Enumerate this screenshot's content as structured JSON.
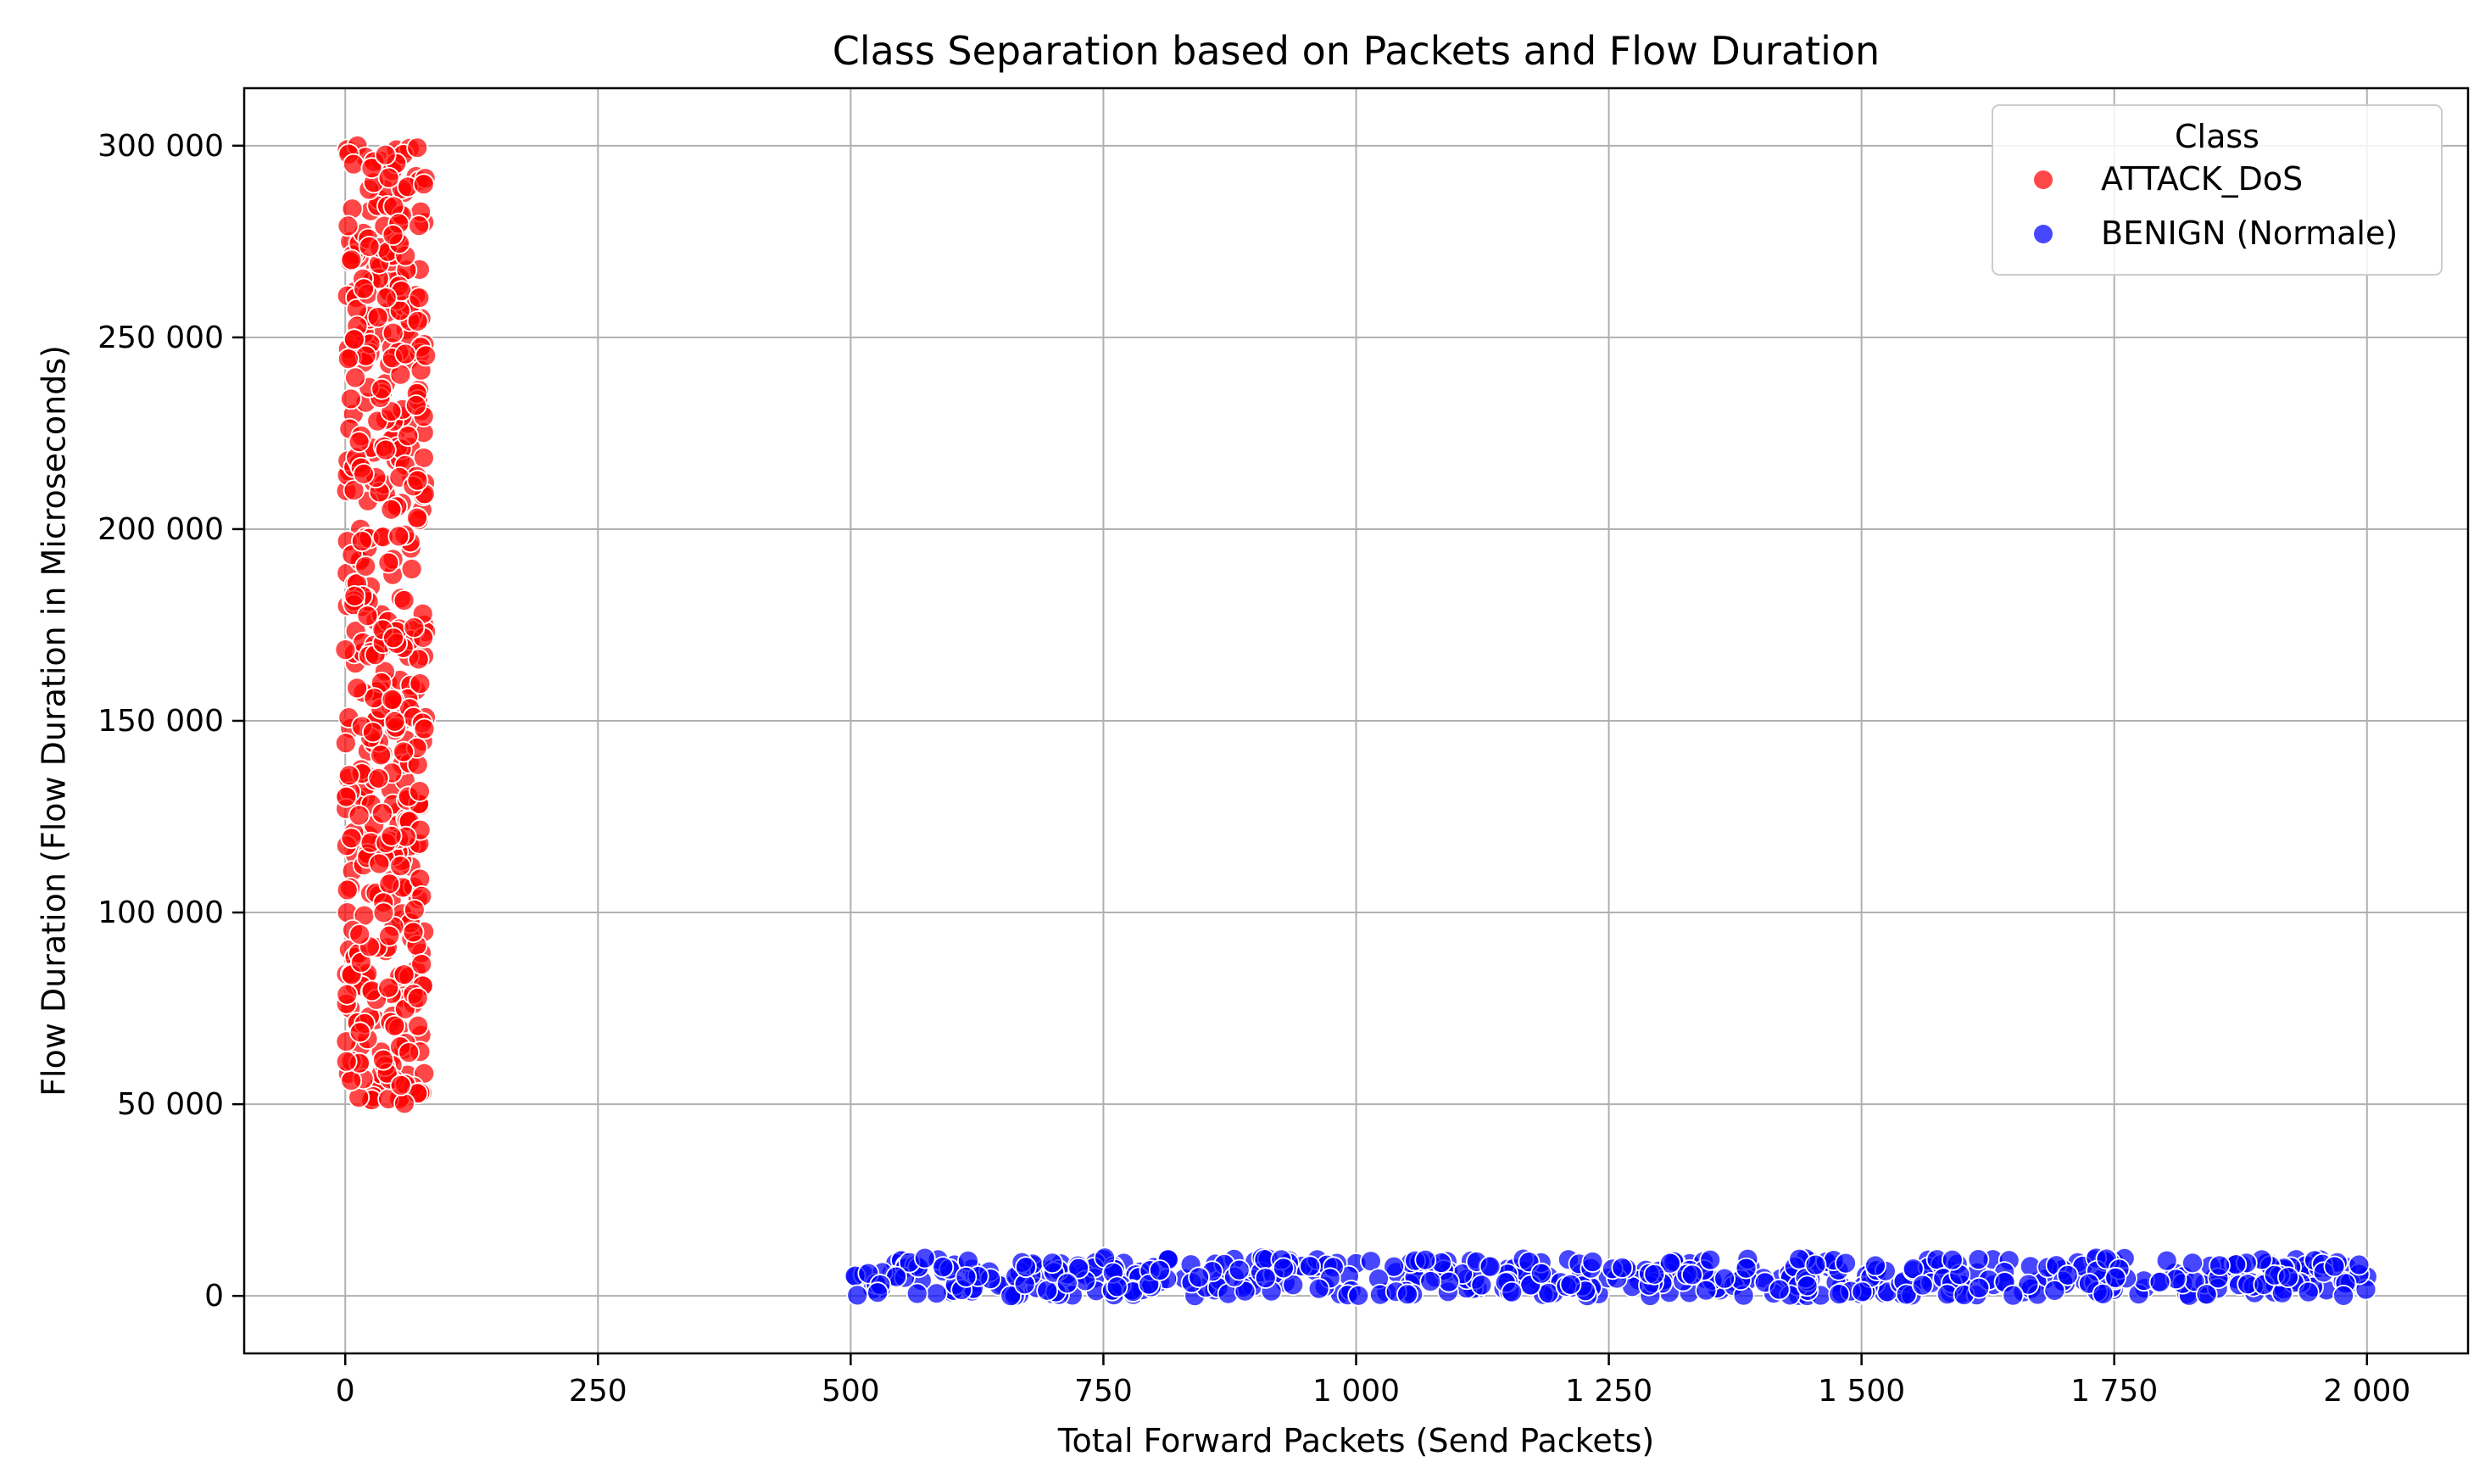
{
  "chart_data": {
    "type": "scatter",
    "title": "Class Separation based on Packets and Flow Duration",
    "xlabel": "Total Forward Packets (Send Packets)",
    "ylabel": "Flow Duration (Flow Duration in Microseconds)",
    "xlim": [
      -100,
      2100
    ],
    "ylim": [
      -15000,
      315000
    ],
    "xticks": [
      0,
      250,
      500,
      750,
      1000,
      1250,
      1500,
      1750,
      2000
    ],
    "xtick_labels": [
      "0",
      "250",
      "500",
      "750",
      "1 000",
      "1 250",
      "1 500",
      "1 750",
      "2 000"
    ],
    "yticks": [
      0,
      50000,
      100000,
      150000,
      200000,
      250000,
      300000
    ],
    "ytick_labels": [
      "0",
      "50 000",
      "100 000",
      "150 000",
      "200 000",
      "250 000",
      "300 000"
    ],
    "grid": true,
    "legend": {
      "title": "Class",
      "placement": "upper right"
    },
    "series": [
      {
        "name": "ATTACK_DoS",
        "color": "#ff0000",
        "x_range": [
          0,
          80
        ],
        "y_range": [
          50000,
          300000
        ],
        "count": 520,
        "points": [
          [
            2,
            299000
          ],
          [
            12,
            300000
          ],
          [
            20,
            297000
          ],
          [
            35,
            296000
          ],
          [
            50,
            296000
          ],
          [
            70,
            292000
          ],
          [
            5,
            275000
          ],
          [
            25,
            283000
          ],
          [
            45,
            285000
          ],
          [
            78,
            280000
          ],
          [
            10,
            262000
          ],
          [
            30,
            268000
          ],
          [
            55,
            265000
          ],
          [
            75,
            255000
          ],
          [
            3,
            247000
          ],
          [
            22,
            250000
          ],
          [
            60,
            252000
          ],
          [
            8,
            230000
          ],
          [
            40,
            238000
          ],
          [
            72,
            235000
          ],
          [
            4,
            215000
          ],
          [
            28,
            220000
          ],
          [
            50,
            218000
          ],
          [
            76,
            205000
          ],
          [
            15,
            200000
          ],
          [
            35,
            198000
          ],
          [
            65,
            195000
          ],
          [
            2,
            180000
          ],
          [
            25,
            185000
          ],
          [
            55,
            182000
          ],
          [
            78,
            175000
          ],
          [
            10,
            165000
          ],
          [
            42,
            160000
          ],
          [
            70,
            158000
          ],
          [
            5,
            148000
          ],
          [
            30,
            150000
          ],
          [
            60,
            145000
          ],
          [
            3,
            135000
          ],
          [
            20,
            130000
          ],
          [
            45,
            132000
          ],
          [
            75,
            128000
          ],
          [
            10,
            115000
          ],
          [
            35,
            118000
          ],
          [
            65,
            112000
          ],
          [
            2,
            100000
          ],
          [
            25,
            105000
          ],
          [
            55,
            98000
          ],
          [
            78,
            95000
          ],
          [
            8,
            88000
          ],
          [
            40,
            90000
          ],
          [
            70,
            85000
          ],
          [
            5,
            75000
          ],
          [
            30,
            72000
          ],
          [
            60,
            78000
          ],
          [
            15,
            65000
          ],
          [
            45,
            62000
          ],
          [
            75,
            68000
          ],
          [
            3,
            58000
          ],
          [
            30,
            54000
          ],
          [
            55,
            52000
          ],
          [
            76,
            53000
          ]
        ]
      },
      {
        "name": "BENIGN (Normale)",
        "color": "#0000ff",
        "x_range": [
          500,
          2000
        ],
        "y_range": [
          0,
          10000
        ],
        "count": 520,
        "points": [
          [
            505,
            5000
          ],
          [
            530,
            2000
          ],
          [
            550,
            9000
          ],
          [
            570,
            4000
          ],
          [
            600,
            1000
          ],
          [
            620,
            7000
          ],
          [
            650,
            3000
          ],
          [
            680,
            8000
          ],
          [
            700,
            500
          ],
          [
            730,
            6000
          ],
          [
            750,
            9500
          ],
          [
            780,
            2500
          ],
          [
            800,
            7500
          ],
          [
            830,
            4500
          ],
          [
            860,
            1500
          ],
          [
            900,
            9000
          ],
          [
            930,
            3500
          ],
          [
            960,
            6500
          ],
          [
            1000,
            8500
          ],
          [
            1030,
            1000
          ],
          [
            1060,
            5500
          ],
          [
            1090,
            9000
          ],
          [
            1120,
            2000
          ],
          [
            1150,
            7000
          ],
          [
            1180,
            4000
          ],
          [
            1210,
            9500
          ],
          [
            1240,
            500
          ],
          [
            1270,
            6000
          ],
          [
            1300,
            3000
          ],
          [
            1330,
            8500
          ],
          [
            1360,
            1500
          ],
          [
            1390,
            7500
          ],
          [
            1420,
            4500
          ],
          [
            1450,
            9000
          ],
          [
            1480,
            2500
          ],
          [
            1510,
            6500
          ],
          [
            1540,
            500
          ],
          [
            1570,
            8000
          ],
          [
            1600,
            3500
          ],
          [
            1630,
            9500
          ],
          [
            1660,
            1000
          ],
          [
            1690,
            7000
          ],
          [
            1720,
            4000
          ],
          [
            1750,
            9000
          ],
          [
            1780,
            2000
          ],
          [
            1810,
            6000
          ],
          [
            1840,
            500
          ],
          [
            1870,
            8500
          ],
          [
            1900,
            3000
          ],
          [
            1930,
            9500
          ],
          [
            1960,
            1500
          ],
          [
            1980,
            7500
          ],
          [
            2000,
            5000
          ]
        ]
      }
    ]
  }
}
